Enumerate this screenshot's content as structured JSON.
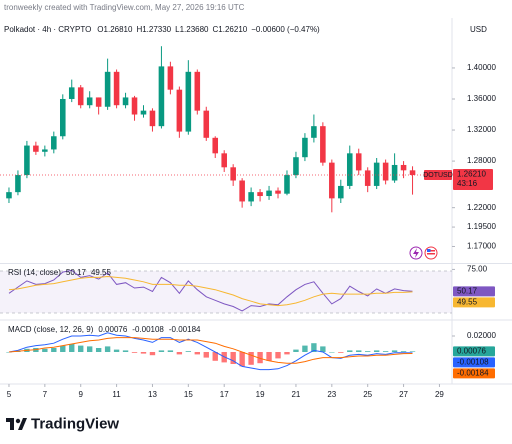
{
  "header": {
    "attribution": "tronweekly created with TradingView.com, May 27, 2026 19:16 UTC"
  },
  "footer": {
    "brand": "TradingView"
  },
  "chart_data": [
    {
      "type": "candlestick",
      "title": "Polkadot · 4h · CRYPTO",
      "ohlc_labels": [
        "O1.26810",
        "H1.27330",
        "L1.23680",
        "C1.26210",
        "−0.00600 (−0.47%)"
      ],
      "currency": "USD",
      "symbol_tag": "DOTUSD",
      "price_label": "1.26210",
      "countdown": "43:16",
      "up_color": "#089981",
      "down_color": "#f23645",
      "x": [
        5,
        5.5,
        6,
        6.5,
        7,
        7.5,
        8,
        8.5,
        9,
        9.5,
        10,
        10.5,
        11,
        11.5,
        12,
        12.5,
        13,
        13.5,
        14,
        14.5,
        15,
        15.5,
        16,
        16.5,
        17,
        17.5,
        18,
        18.5,
        19,
        19.5,
        20,
        20.5,
        21,
        21.5,
        22,
        22.5,
        23,
        23.5,
        24,
        24.5,
        25,
        25.5,
        26,
        26.5,
        27,
        27.5
      ],
      "open": [
        1.232,
        1.24,
        1.262,
        1.3,
        1.292,
        1.295,
        1.312,
        1.36,
        1.375,
        1.352,
        1.362,
        1.35,
        1.395,
        1.352,
        1.362,
        1.34,
        1.345,
        1.325,
        1.402,
        1.372,
        1.318,
        1.395,
        1.345,
        1.31,
        1.29,
        1.272,
        1.255,
        1.228,
        1.24,
        1.235,
        1.242,
        1.238,
        1.262,
        1.285,
        1.31,
        1.325,
        1.278,
        1.232,
        1.248,
        1.29,
        1.268,
        1.248,
        1.278,
        1.255,
        1.275,
        1.2681
      ],
      "high": [
        1.246,
        1.268,
        1.306,
        1.305,
        1.3,
        1.318,
        1.366,
        1.385,
        1.378,
        1.37,
        1.362,
        1.412,
        1.398,
        1.368,
        1.364,
        1.352,
        1.348,
        1.428,
        1.408,
        1.376,
        1.41,
        1.398,
        1.35,
        1.312,
        1.294,
        1.276,
        1.258,
        1.246,
        1.244,
        1.248,
        1.246,
        1.268,
        1.292,
        1.316,
        1.34,
        1.33,
        1.282,
        1.256,
        1.3,
        1.296,
        1.272,
        1.284,
        1.282,
        1.29,
        1.28,
        1.2733
      ],
      "low": [
        1.226,
        1.236,
        1.258,
        1.288,
        1.286,
        1.29,
        1.308,
        1.356,
        1.348,
        1.348,
        1.34,
        1.346,
        1.348,
        1.348,
        1.332,
        1.336,
        1.318,
        1.322,
        1.366,
        1.31,
        1.314,
        1.34,
        1.306,
        1.284,
        1.266,
        1.248,
        1.22,
        1.222,
        1.228,
        1.23,
        1.232,
        1.236,
        1.258,
        1.28,
        1.304,
        1.274,
        1.214,
        1.226,
        1.244,
        1.262,
        1.24,
        1.244,
        1.25,
        1.252,
        1.258,
        1.2368
      ],
      "close": [
        1.24,
        1.262,
        1.3,
        1.292,
        1.295,
        1.312,
        1.36,
        1.375,
        1.352,
        1.362,
        1.35,
        1.395,
        1.352,
        1.362,
        1.34,
        1.345,
        1.325,
        1.402,
        1.372,
        1.318,
        1.395,
        1.345,
        1.31,
        1.29,
        1.272,
        1.255,
        1.228,
        1.24,
        1.235,
        1.242,
        1.238,
        1.262,
        1.285,
        1.31,
        1.325,
        1.278,
        1.232,
        1.248,
        1.29,
        1.268,
        1.248,
        1.278,
        1.255,
        1.275,
        1.2681,
        1.2621
      ],
      "xlim": [
        4.5,
        29.7
      ],
      "xticks": [
        5,
        7,
        9,
        11,
        13,
        15,
        17,
        19,
        21,
        23,
        25,
        27,
        29
      ],
      "ylim": [
        1.15,
        1.436
      ],
      "yticks": [
        {
          "value": 1.4,
          "label": "1.40000"
        },
        {
          "value": 1.36,
          "label": "1.36000"
        },
        {
          "value": 1.32,
          "label": "1.32000"
        },
        {
          "value": 1.28,
          "label": "1.28000"
        },
        {
          "value": 1.22,
          "label": "1.22000"
        },
        {
          "value": 1.195,
          "label": "1.19500"
        },
        {
          "value": 1.17,
          "label": "1.17000"
        }
      ],
      "grid": false
    },
    {
      "type": "line",
      "title": "RSI (14, close)",
      "series": [
        {
          "color": "#7e57c2",
          "values": [
            48,
            55,
            62,
            58,
            59,
            63,
            72,
            74,
            66,
            68,
            64,
            71,
            58,
            60,
            54,
            55,
            50,
            66,
            60,
            48,
            62,
            52,
            44,
            40,
            36,
            33,
            28,
            34,
            33,
            36,
            35,
            44,
            52,
            58,
            61,
            48,
            36,
            42,
            56,
            50,
            45,
            53,
            48,
            53,
            51,
            50.17
          ]
        },
        {
          "color": "#f7b731",
          "values": [
            52,
            53,
            55,
            57,
            58,
            59,
            61,
            63,
            65,
            66,
            66,
            67,
            66,
            65,
            63,
            61,
            58,
            58,
            58,
            57,
            57,
            56,
            54,
            52,
            49,
            46,
            42,
            39,
            36,
            35,
            34,
            35,
            37,
            40,
            44,
            47,
            48,
            47,
            47,
            47,
            47,
            48,
            48,
            49,
            49,
            49.55
          ]
        }
      ],
      "ylim": [
        20,
        80
      ],
      "yticks": [
        {
          "value": 75,
          "label": "75.00"
        }
      ],
      "grid": false
    },
    {
      "type": "line",
      "title": "MACD (close, 12, 26, 9)",
      "series": [
        {
          "kind": "histogram",
          "color": "#26a69a",
          "down_color": "#ff5252",
          "values": [
            0,
            0.001,
            0.004,
            0.005,
            0.004,
            0.005,
            0.008,
            0.01,
            0.008,
            0.007,
            0.005,
            0.007,
            0.003,
            0.002,
            -0.001,
            -0.002,
            -0.004,
            0.002,
            0.002,
            -0.003,
            0.001,
            -0.003,
            -0.007,
            -0.011,
            -0.013,
            -0.015,
            -0.018,
            -0.016,
            -0.014,
            -0.011,
            -0.008,
            -0.003,
            0.003,
            0.008,
            0.011,
            0.007,
            0,
            -0.001,
            0.002,
            0.002,
            0.001,
            0.002,
            0.001,
            0.002,
            0.001,
            0.00076
          ]
        },
        {
          "color": "#2962ff",
          "values": [
            0,
            0.002,
            0.006,
            0.008,
            0.009,
            0.011,
            0.016,
            0.02,
            0.02,
            0.021,
            0.02,
            0.024,
            0.021,
            0.02,
            0.017,
            0.015,
            0.012,
            0.018,
            0.018,
            0.012,
            0.016,
            0.012,
            0.006,
            0,
            -0.006,
            -0.011,
            -0.018,
            -0.02,
            -0.022,
            -0.022,
            -0.021,
            -0.017,
            -0.011,
            -0.004,
            0.002,
            0,
            -0.007,
            -0.008,
            -0.004,
            -0.003,
            -0.004,
            -0.002,
            -0.003,
            -0.001,
            -0.001,
            -0.00108
          ]
        },
        {
          "color": "#ff6d00",
          "values": [
            0,
            0.001,
            0.002,
            0.003,
            0.005,
            0.006,
            0.008,
            0.01,
            0.012,
            0.014,
            0.015,
            0.017,
            0.018,
            0.018,
            0.018,
            0.017,
            0.016,
            0.016,
            0.016,
            0.015,
            0.015,
            0.015,
            0.013,
            0.011,
            0.007,
            0.004,
            0,
            -0.004,
            -0.008,
            -0.011,
            -0.013,
            -0.014,
            -0.014,
            -0.012,
            -0.009,
            -0.007,
            -0.007,
            -0.007,
            -0.006,
            -0.005,
            -0.005,
            -0.004,
            -0.004,
            -0.003,
            -0.002,
            -0.00184
          ]
        }
      ],
      "ylim": [
        -0.0375,
        0.0375
      ],
      "yticks": [
        {
          "value": 0.02,
          "label": "0.02000"
        }
      ],
      "grid": false
    }
  ]
}
